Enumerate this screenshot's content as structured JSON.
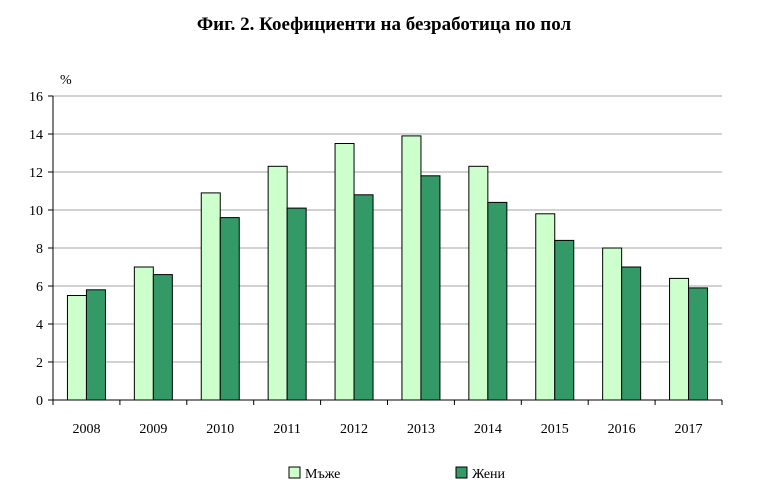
{
  "chart_data": {
    "type": "bar",
    "title": "Фиг. 2. Коефициенти на безработица по пол",
    "ylabel": "%",
    "xlabel": "",
    "ylim": [
      0,
      16
    ],
    "yticks": [
      0,
      2,
      4,
      6,
      8,
      10,
      12,
      14,
      16
    ],
    "grid": true,
    "legend": "bottom",
    "categories": [
      "2008",
      "2009",
      "2010",
      "2011",
      "2012",
      "2013",
      "2014",
      "2015",
      "2016",
      "2017"
    ],
    "series": [
      {
        "name": "Мъже",
        "color": "#ccffcc",
        "values": [
          5.5,
          7.0,
          10.9,
          12.3,
          13.5,
          13.9,
          12.3,
          9.8,
          8.0,
          6.4
        ]
      },
      {
        "name": "Жени",
        "color": "#339966",
        "values": [
          5.8,
          6.6,
          9.6,
          10.1,
          10.8,
          11.8,
          10.4,
          8.4,
          7.0,
          5.9
        ]
      }
    ]
  }
}
